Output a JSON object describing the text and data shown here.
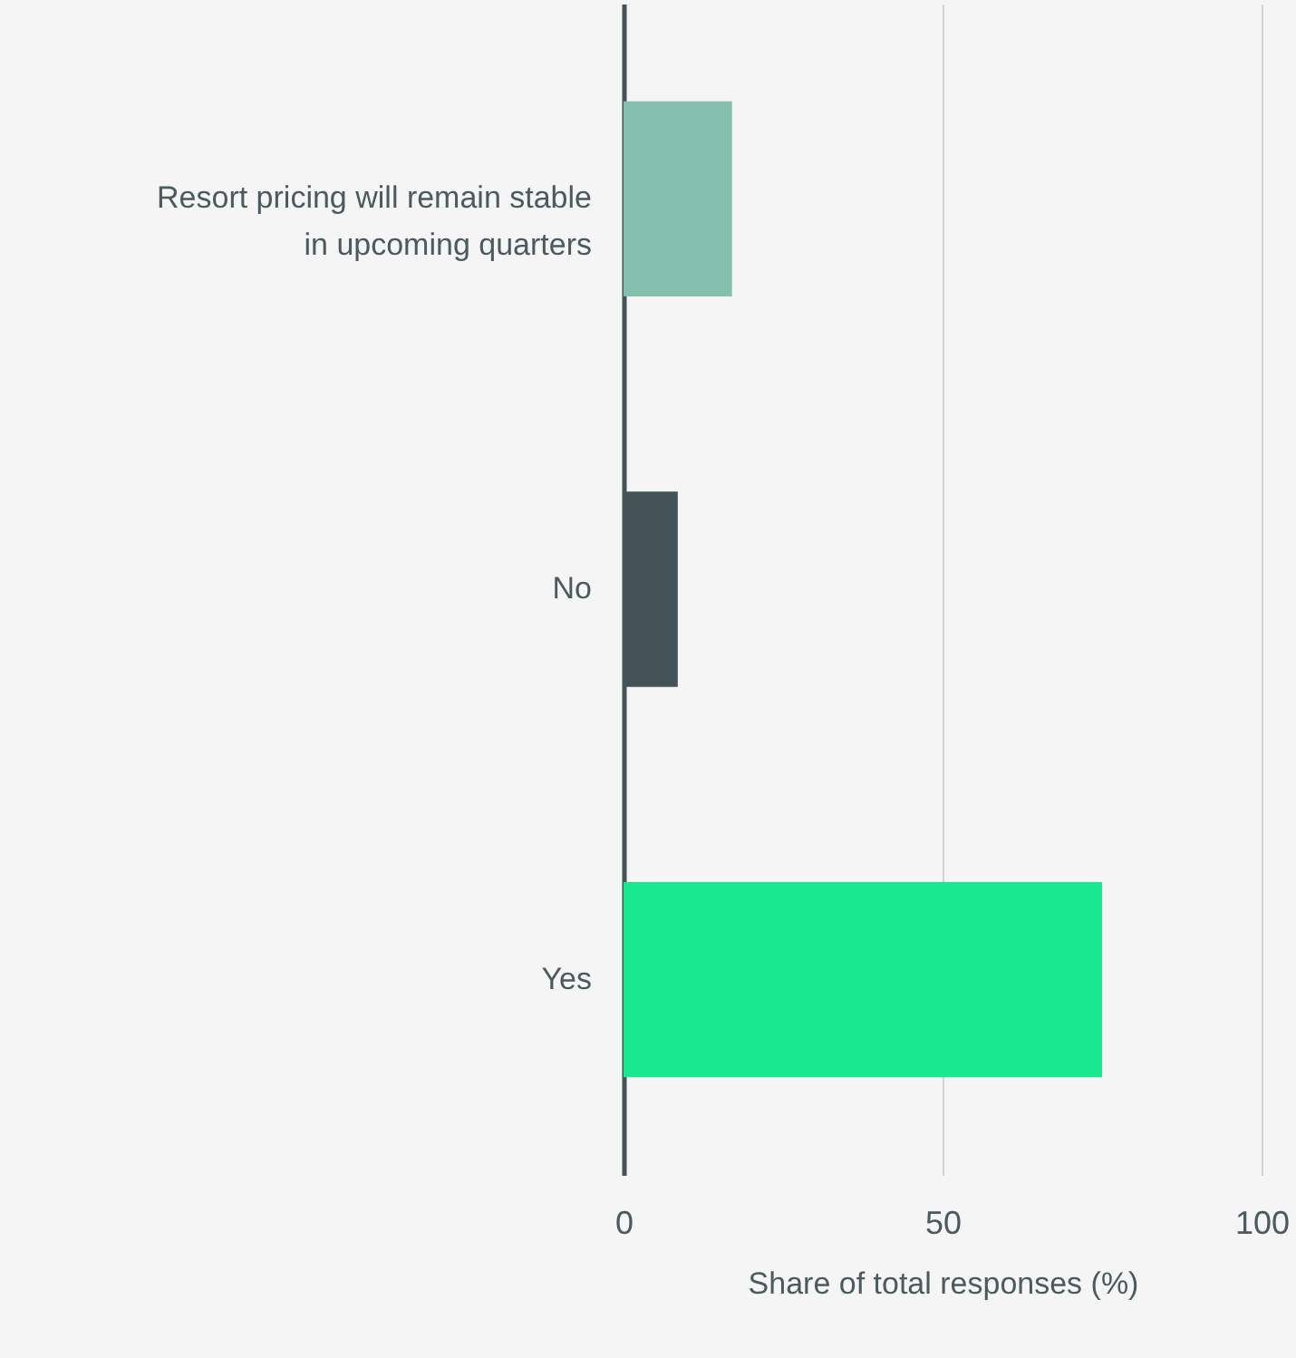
{
  "chart_data": {
    "type": "bar",
    "orientation": "horizontal",
    "xlabel": "Share of total responses (%)",
    "categories": [
      "Resort pricing will remain stable in upcoming quarters",
      "No",
      "Yes"
    ],
    "values": [
      17,
      8.5,
      75
    ],
    "colors": [
      "#84bfae",
      "#435358",
      "#1ae890"
    ],
    "xlim": [
      0,
      100
    ],
    "xticks": [
      0,
      50,
      100
    ],
    "grid": "x"
  }
}
